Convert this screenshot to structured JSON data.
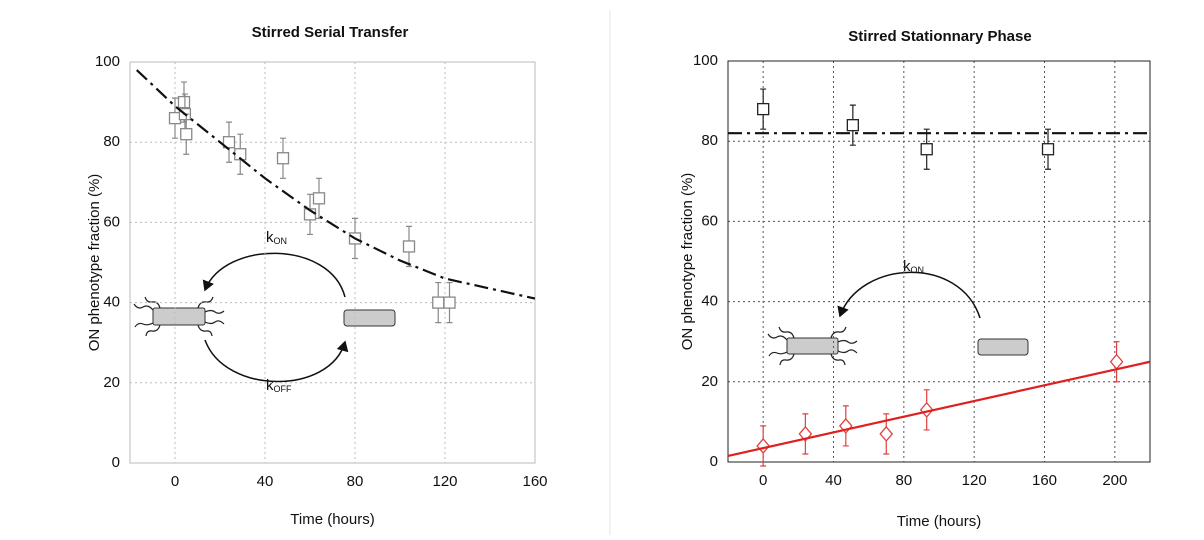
{
  "chart_data": [
    {
      "type": "scatter",
      "title": "Stirred Serial Transfer",
      "x_label": "Time (hours)",
      "y_label": "ON phenotype fraction (%)",
      "xlim": [
        -20,
        160
      ],
      "ylim": [
        0,
        100
      ],
      "xticks": [
        0,
        40,
        80,
        120,
        160
      ],
      "yticks": [
        0,
        20,
        40,
        60,
        80,
        100
      ],
      "grid": true,
      "grid_color": "#bbbbbb",
      "frame_color": "#bbbbbb",
      "annotations": [
        {
          "text": "k",
          "subscript": "ON"
        },
        {
          "text": "k",
          "subscript": "OFF"
        }
      ],
      "series": [
        {
          "kind": "points",
          "marker": "square",
          "color": "#888888",
          "x": [
            0,
            4,
            4.4,
            5,
            24,
            29,
            48,
            60,
            64,
            80,
            104,
            117,
            122
          ],
          "values": [
            86,
            90,
            87,
            82,
            80,
            77,
            76,
            62,
            66,
            56,
            54,
            40,
            40
          ],
          "errors": [
            5,
            5,
            5,
            5,
            5,
            5,
            5,
            5,
            5,
            5,
            5,
            5,
            5
          ]
        },
        {
          "kind": "line",
          "style": "dash-dot",
          "color": "#111111",
          "x": [
            -17,
            0,
            20,
            40,
            60,
            80,
            100,
            120,
            140,
            160
          ],
          "values": [
            98,
            89,
            80,
            71,
            63,
            56,
            50.5,
            46,
            43.5,
            41
          ]
        }
      ]
    },
    {
      "type": "scatter",
      "title": "Stirred Stationnary Phase",
      "x_label": "Time (hours)",
      "y_label": "ON phenotype fraction (%)",
      "xlim": [
        -20,
        220
      ],
      "ylim": [
        0,
        100
      ],
      "xticks": [
        0,
        40,
        80,
        120,
        160,
        200
      ],
      "yticks": [
        0,
        20,
        40,
        60,
        80,
        100
      ],
      "grid": true,
      "grid_color": "#555555",
      "frame_color": "#222222",
      "annotations": [
        {
          "text": "k",
          "subscript": "ON"
        }
      ],
      "series": [
        {
          "kind": "points",
          "marker": "square",
          "color": "#222222",
          "x": [
            0,
            51,
            93,
            162
          ],
          "values": [
            88,
            84,
            78,
            78
          ],
          "errors": [
            5,
            5,
            5,
            5
          ]
        },
        {
          "kind": "line",
          "style": "dash-dot",
          "color": "#111111",
          "x": [
            -20,
            220
          ],
          "values": [
            82,
            82
          ]
        },
        {
          "kind": "points",
          "marker": "diamond",
          "color": "#e04040",
          "x": [
            0,
            24,
            47,
            70,
            93,
            201
          ],
          "values": [
            4,
            7,
            9,
            7,
            13,
            25
          ],
          "errors": [
            5,
            5,
            5,
            5,
            5,
            5
          ]
        },
        {
          "kind": "line",
          "style": "solid",
          "color": "#dd2020",
          "x": [
            -20,
            220
          ],
          "values": [
            1.5,
            25
          ]
        }
      ]
    }
  ]
}
